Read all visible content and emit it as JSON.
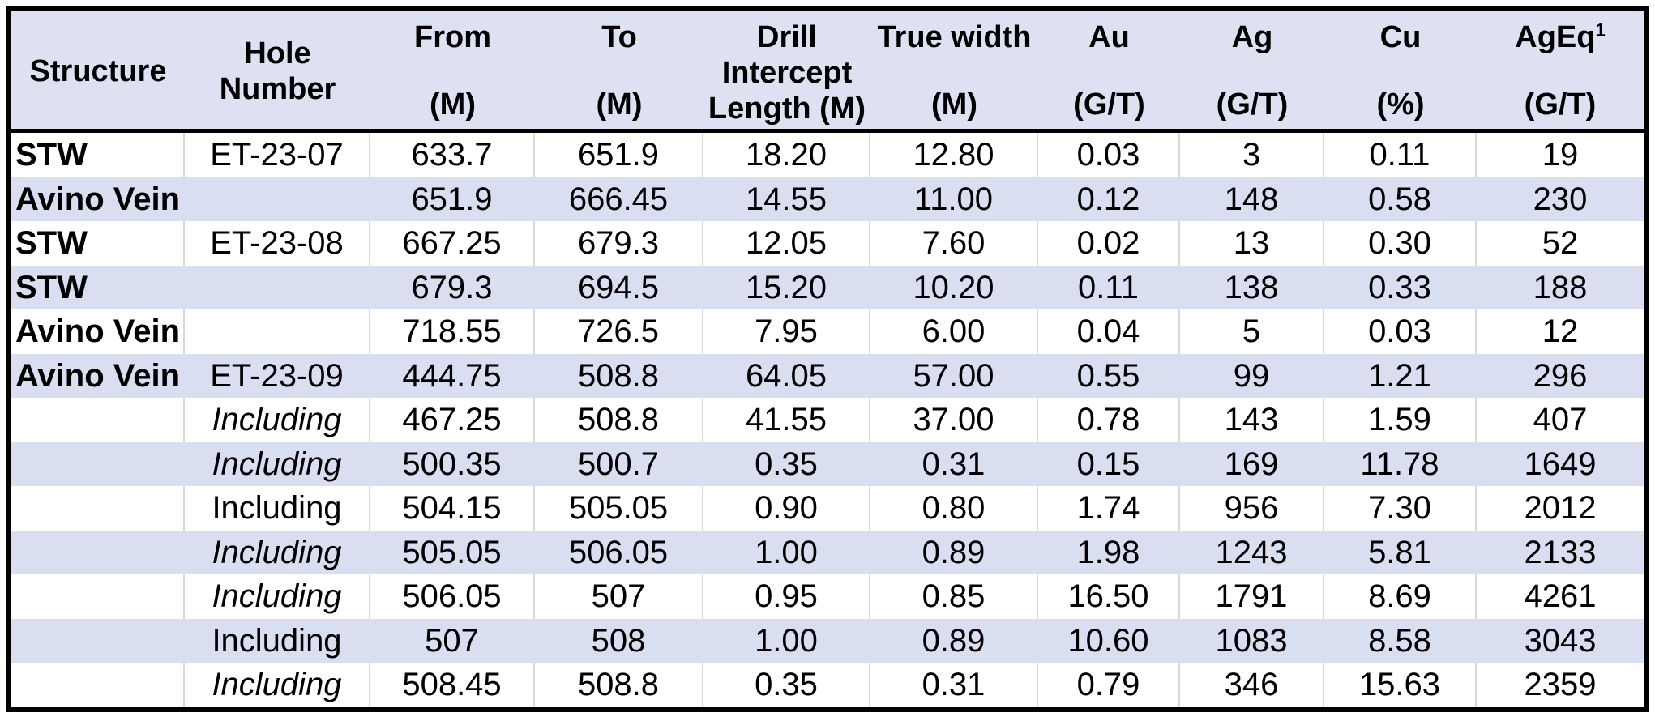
{
  "table": {
    "title": "drill-intercept-results",
    "header": {
      "columns": [
        {
          "name": "Structure",
          "sup": "",
          "unit": ""
        },
        {
          "name": "Hole Number",
          "sup": "",
          "unit": ""
        },
        {
          "name": "From",
          "sup": "",
          "unit": "(M)"
        },
        {
          "name": "To",
          "sup": "",
          "unit": "(M)"
        },
        {
          "name": "Drill Intercept",
          "sup": "",
          "unit": "Length (M)"
        },
        {
          "name": "True width",
          "sup": "",
          "unit": "(M)"
        },
        {
          "name": "Au",
          "sup": "",
          "unit": "(G/T)"
        },
        {
          "name": "Ag",
          "sup": "",
          "unit": "(G/T)"
        },
        {
          "name": "Cu",
          "sup": "",
          "unit": "(%)"
        },
        {
          "name": "AgEq",
          "sup": "1",
          "unit": "(G/T)"
        }
      ]
    },
    "rows": [
      {
        "structure": "STW",
        "hole": "ET-23-07",
        "hole_italic": false,
        "values": [
          "633.7",
          "651.9",
          "18.20",
          "12.80",
          "0.03",
          "3",
          "0.11",
          "19"
        ]
      },
      {
        "structure": "Avino Vein",
        "hole": "",
        "hole_italic": false,
        "values": [
          "651.9",
          "666.45",
          "14.55",
          "11.00",
          "0.12",
          "148",
          "0.58",
          "230"
        ]
      },
      {
        "structure": "STW",
        "hole": "ET-23-08",
        "hole_italic": false,
        "values": [
          "667.25",
          "679.3",
          "12.05",
          "7.60",
          "0.02",
          "13",
          "0.30",
          "52"
        ]
      },
      {
        "structure": "STW",
        "hole": "",
        "hole_italic": false,
        "values": [
          "679.3",
          "694.5",
          "15.20",
          "10.20",
          "0.11",
          "138",
          "0.33",
          "188"
        ]
      },
      {
        "structure": "Avino Vein",
        "hole": "",
        "hole_italic": false,
        "values": [
          "718.55",
          "726.5",
          "7.95",
          "6.00",
          "0.04",
          "5",
          "0.03",
          "12"
        ]
      },
      {
        "structure": "Avino Vein",
        "hole": "ET-23-09",
        "hole_italic": false,
        "values": [
          "444.75",
          "508.8",
          "64.05",
          "57.00",
          "0.55",
          "99",
          "1.21",
          "296"
        ]
      },
      {
        "structure": "",
        "hole": "Including",
        "hole_italic": true,
        "values": [
          "467.25",
          "508.8",
          "41.55",
          "37.00",
          "0.78",
          "143",
          "1.59",
          "407"
        ]
      },
      {
        "structure": "",
        "hole": "Including",
        "hole_italic": true,
        "values": [
          "500.35",
          "500.7",
          "0.35",
          "0.31",
          "0.15",
          "169",
          "11.78",
          "1649"
        ]
      },
      {
        "structure": "",
        "hole": "Including",
        "hole_italic": false,
        "values": [
          "504.15",
          "505.05",
          "0.90",
          "0.80",
          "1.74",
          "956",
          "7.30",
          "2012"
        ]
      },
      {
        "structure": "",
        "hole": "Including",
        "hole_italic": true,
        "values": [
          "505.05",
          "506.05",
          "1.00",
          "0.89",
          "1.98",
          "1243",
          "5.81",
          "2133"
        ]
      },
      {
        "structure": "",
        "hole": "Including",
        "hole_italic": true,
        "values": [
          "506.05",
          "507",
          "0.95",
          "0.85",
          "16.50",
          "1791",
          "8.69",
          "4261"
        ]
      },
      {
        "structure": "",
        "hole": "Including",
        "hole_italic": false,
        "values": [
          "507",
          "508",
          "1.00",
          "0.89",
          "10.60",
          "1083",
          "8.58",
          "3043"
        ]
      },
      {
        "structure": "",
        "hole": "Including",
        "hole_italic": true,
        "values": [
          "508.45",
          "508.8",
          "0.35",
          "0.31",
          "0.79",
          "346",
          "15.63",
          "2359"
        ]
      }
    ]
  },
  "colors": {
    "table_border": "#000000",
    "header_bg": "#dde1f2",
    "band_bg": "#d9def0",
    "row_bg": "#ffffff",
    "gridline": "#d9d9d9",
    "text": "#000000"
  }
}
